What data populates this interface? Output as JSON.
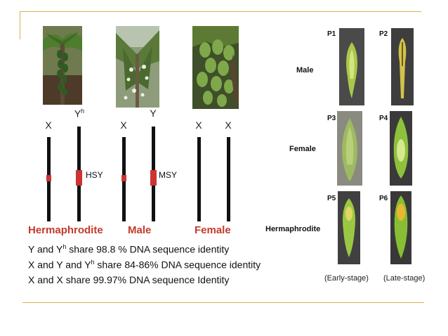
{
  "chromosomes": {
    "herm_x": "X",
    "herm_y": "Y",
    "herm_y_sup": "h",
    "male_x": "X",
    "male_y": "Y",
    "female_x1": "X",
    "female_x2": "X",
    "hsy": "HSY",
    "msy": "MSY"
  },
  "sexes": {
    "hermaphrodite": "Hermaphrodite",
    "male": "Male",
    "female": "Female"
  },
  "statements": {
    "s1_a": "Y and Y",
    "s1_sup": "h",
    "s1_b": " share 98.8 % DNA sequence identity",
    "s2_a": "X and Y and Y",
    "s2_sup": "h",
    "s2_b": " share 84-86% DNA sequence identity",
    "s3": "X and X share 99.97% DNA sequence Identity"
  },
  "flowers": {
    "row_male": "Male",
    "row_female": "Female",
    "row_herm": "Hermaphrodite",
    "p1": "P1",
    "p2": "P2",
    "p3": "P3",
    "p4": "P4",
    "p5": "P5",
    "p6": "P6",
    "early": "(Early-stage)",
    "late": "(Late-stage)"
  },
  "colors": {
    "accent_rule": "#d8b24a",
    "sex_label": "#c23a2a",
    "marker_band": "#cc3333"
  }
}
